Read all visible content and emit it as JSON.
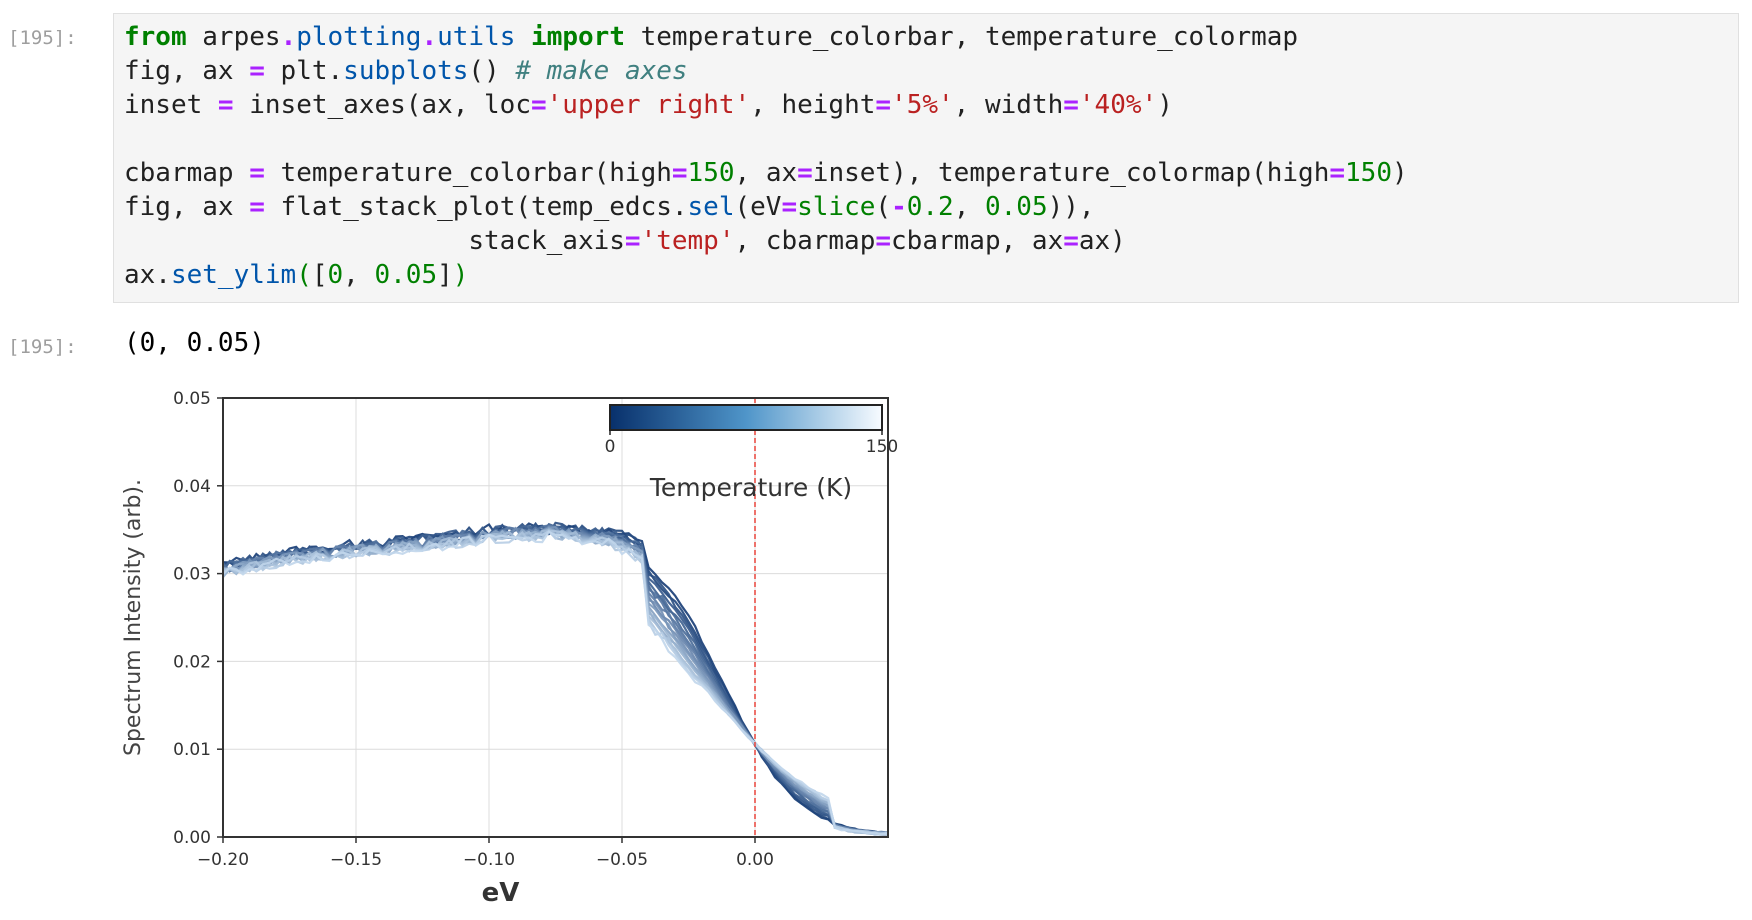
{
  "input_prompt": "[195]:",
  "output_prompt": "[195]:",
  "code": {
    "line1": {
      "kw_from": "from",
      "module_a": "arpes",
      "dot1": ".",
      "module_b": "plotting",
      "dot2": ".",
      "module_c": "utils",
      "kw_import": "import",
      "names": "temperature_colorbar, temperature_colormap"
    },
    "line2": {
      "a": "fig, ax ",
      "eq": "=",
      "b": " plt.",
      "fn": "subplots",
      "c": "() ",
      "comment": "# make axes"
    },
    "line3": {
      "a": "inset ",
      "eq": "=",
      "b": " inset_axes(ax, loc",
      "eq2": "=",
      "s1": "'upper right'",
      "c": ", height",
      "eq3": "=",
      "s2": "'5%'",
      "d": ", width",
      "eq4": "=",
      "s3": "'40%'",
      "e": ")"
    },
    "line5": {
      "a": "cbarmap ",
      "eq": "=",
      "b": " temperature_colorbar(high",
      "eq2": "=",
      "n1": "150",
      "c": ", ax",
      "eq3": "=",
      "d": "inset), temperature_colormap(high",
      "eq4": "=",
      "n2": "150",
      "e": ")"
    },
    "line6": {
      "a": "fig, ax ",
      "eq": "=",
      "b": " flat_stack_plot(temp_edcs.",
      "fn": "sel",
      "c": "(eV",
      "eq2": "=",
      "fn2": "slice",
      "d": "(",
      "minus": "-",
      "n1": "0.2",
      "e": ", ",
      "n2": "0.05",
      "f": ")),"
    },
    "line7": {
      "indent": "                      stack_axis",
      "eq": "=",
      "s1": "'temp'",
      "a": ", cbarmap",
      "eq2": "=",
      "b": "cbarmap, ax",
      "eq3": "=",
      "c": "ax)"
    },
    "line8": {
      "a": "ax.",
      "fn": "set_ylim",
      "p": "(",
      "b": "[",
      "n1": "0",
      "c": ", ",
      "n2": "0.05",
      "d": "]",
      "p2": ")"
    }
  },
  "output": "(0, 0.05)",
  "chart_data": {
    "type": "line",
    "xlabel": "eV",
    "ylabel": "Spectrum Intensity (arb).",
    "xlim": [
      -0.2,
      0.05
    ],
    "ylim": [
      0,
      0.05
    ],
    "xticks": [
      -0.2,
      -0.15,
      -0.1,
      -0.05,
      0.0
    ],
    "xtick_labels": [
      "−0.20",
      "−0.15",
      "−0.10",
      "−0.05",
      "0.00"
    ],
    "yticks": [
      0,
      0.01,
      0.02,
      0.03,
      0.04,
      0.05
    ],
    "ytick_labels": [
      "0.00",
      "0.01",
      "0.02",
      "0.03",
      "0.04",
      "0.05"
    ],
    "grid": true,
    "vline": {
      "x": 0.0,
      "color": "#e8443a",
      "style": "dashed"
    },
    "colorbar": {
      "label": "Temperature (K)",
      "min": 0,
      "max": 150,
      "min_label": "0",
      "max_label": "150",
      "cmap_start": "#08306b",
      "cmap_end": "#f7fbff",
      "placement": "upper right"
    },
    "base_x": [
      -0.2,
      -0.175,
      -0.15,
      -0.125,
      -0.1,
      -0.075,
      -0.05,
      -0.04,
      -0.03,
      -0.02,
      -0.01,
      0.0,
      0.01,
      0.02,
      0.03,
      0.04,
      0.05
    ],
    "base_y": [
      0.0305,
      0.032,
      0.0328,
      0.0335,
      0.0345,
      0.0348,
      0.034,
      0.0325,
      0.0305,
      0.027,
      0.021,
      0.014,
      0.0075,
      0.0035,
      0.0015,
      0.0007,
      0.0004
    ],
    "series_temperatures": [
      10,
      18,
      26,
      34,
      42,
      50,
      58,
      66,
      74,
      82,
      90,
      98,
      106,
      114,
      122,
      130,
      138,
      146
    ]
  }
}
